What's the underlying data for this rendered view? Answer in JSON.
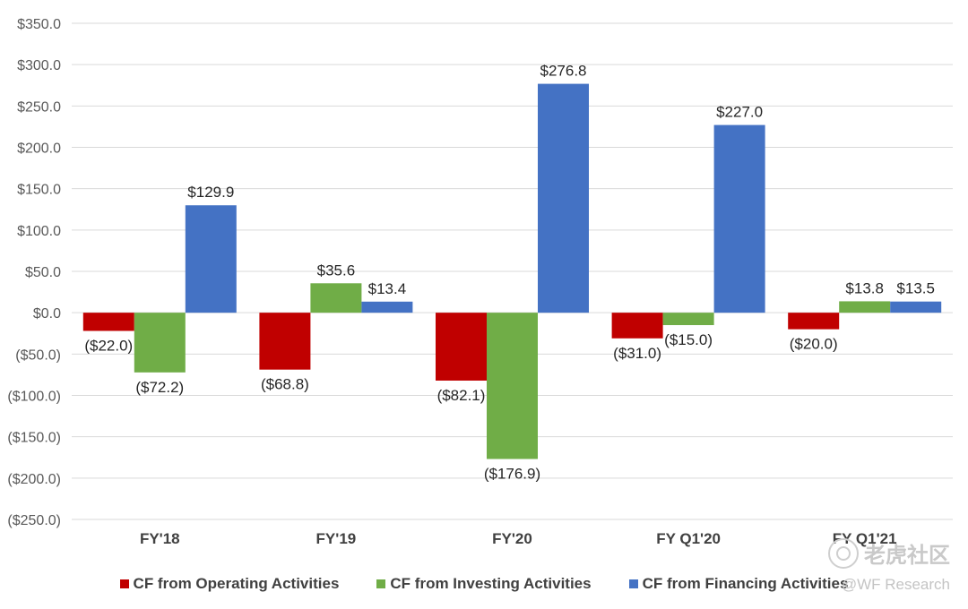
{
  "chart_data": {
    "type": "bar",
    "title": "",
    "xlabel": "",
    "ylabel": "",
    "categories": [
      "FY'18",
      "FY'19",
      "FY'20",
      "FY Q1'20",
      "FY Q1'21"
    ],
    "series": [
      {
        "name": "CF from Operating Activities",
        "color": "#c00000",
        "values": [
          -22.0,
          -68.8,
          -82.1,
          -31.0,
          -20.0
        ],
        "labels": [
          "($22.0)",
          "($68.8)",
          "($82.1)",
          "($31.0)",
          "($20.0)"
        ]
      },
      {
        "name": "CF from Investing Activities",
        "color": "#70ad47",
        "values": [
          -72.2,
          35.6,
          -176.9,
          -15.0,
          13.8
        ],
        "labels": [
          "($72.2)",
          "$35.6",
          "($176.9)",
          "($15.0)",
          "$13.8"
        ]
      },
      {
        "name": "CF from Financing Activities",
        "color": "#4472c4",
        "values": [
          129.9,
          13.4,
          276.8,
          227.0,
          13.5
        ],
        "labels": [
          "$129.9",
          "$13.4",
          "$276.8",
          "$227.0",
          "$13.5"
        ]
      }
    ],
    "ylim": [
      -250,
      350
    ],
    "yticks": [
      350,
      300,
      250,
      200,
      150,
      100,
      50,
      0,
      -50,
      -100,
      -150,
      -200,
      -250
    ],
    "ytick_labels": [
      "$350.0",
      "$300.0",
      "$250.0",
      "$200.0",
      "$150.0",
      "$100.0",
      "$50.0",
      "$0.0",
      "($50.0)",
      "($100.0)",
      "($150.0)",
      "($200.0)",
      "($250.0)"
    ],
    "grid": true,
    "legend_position": "bottom"
  },
  "watermark": {
    "logo_text": "老虎社区",
    "credit": "@WF Research"
  }
}
